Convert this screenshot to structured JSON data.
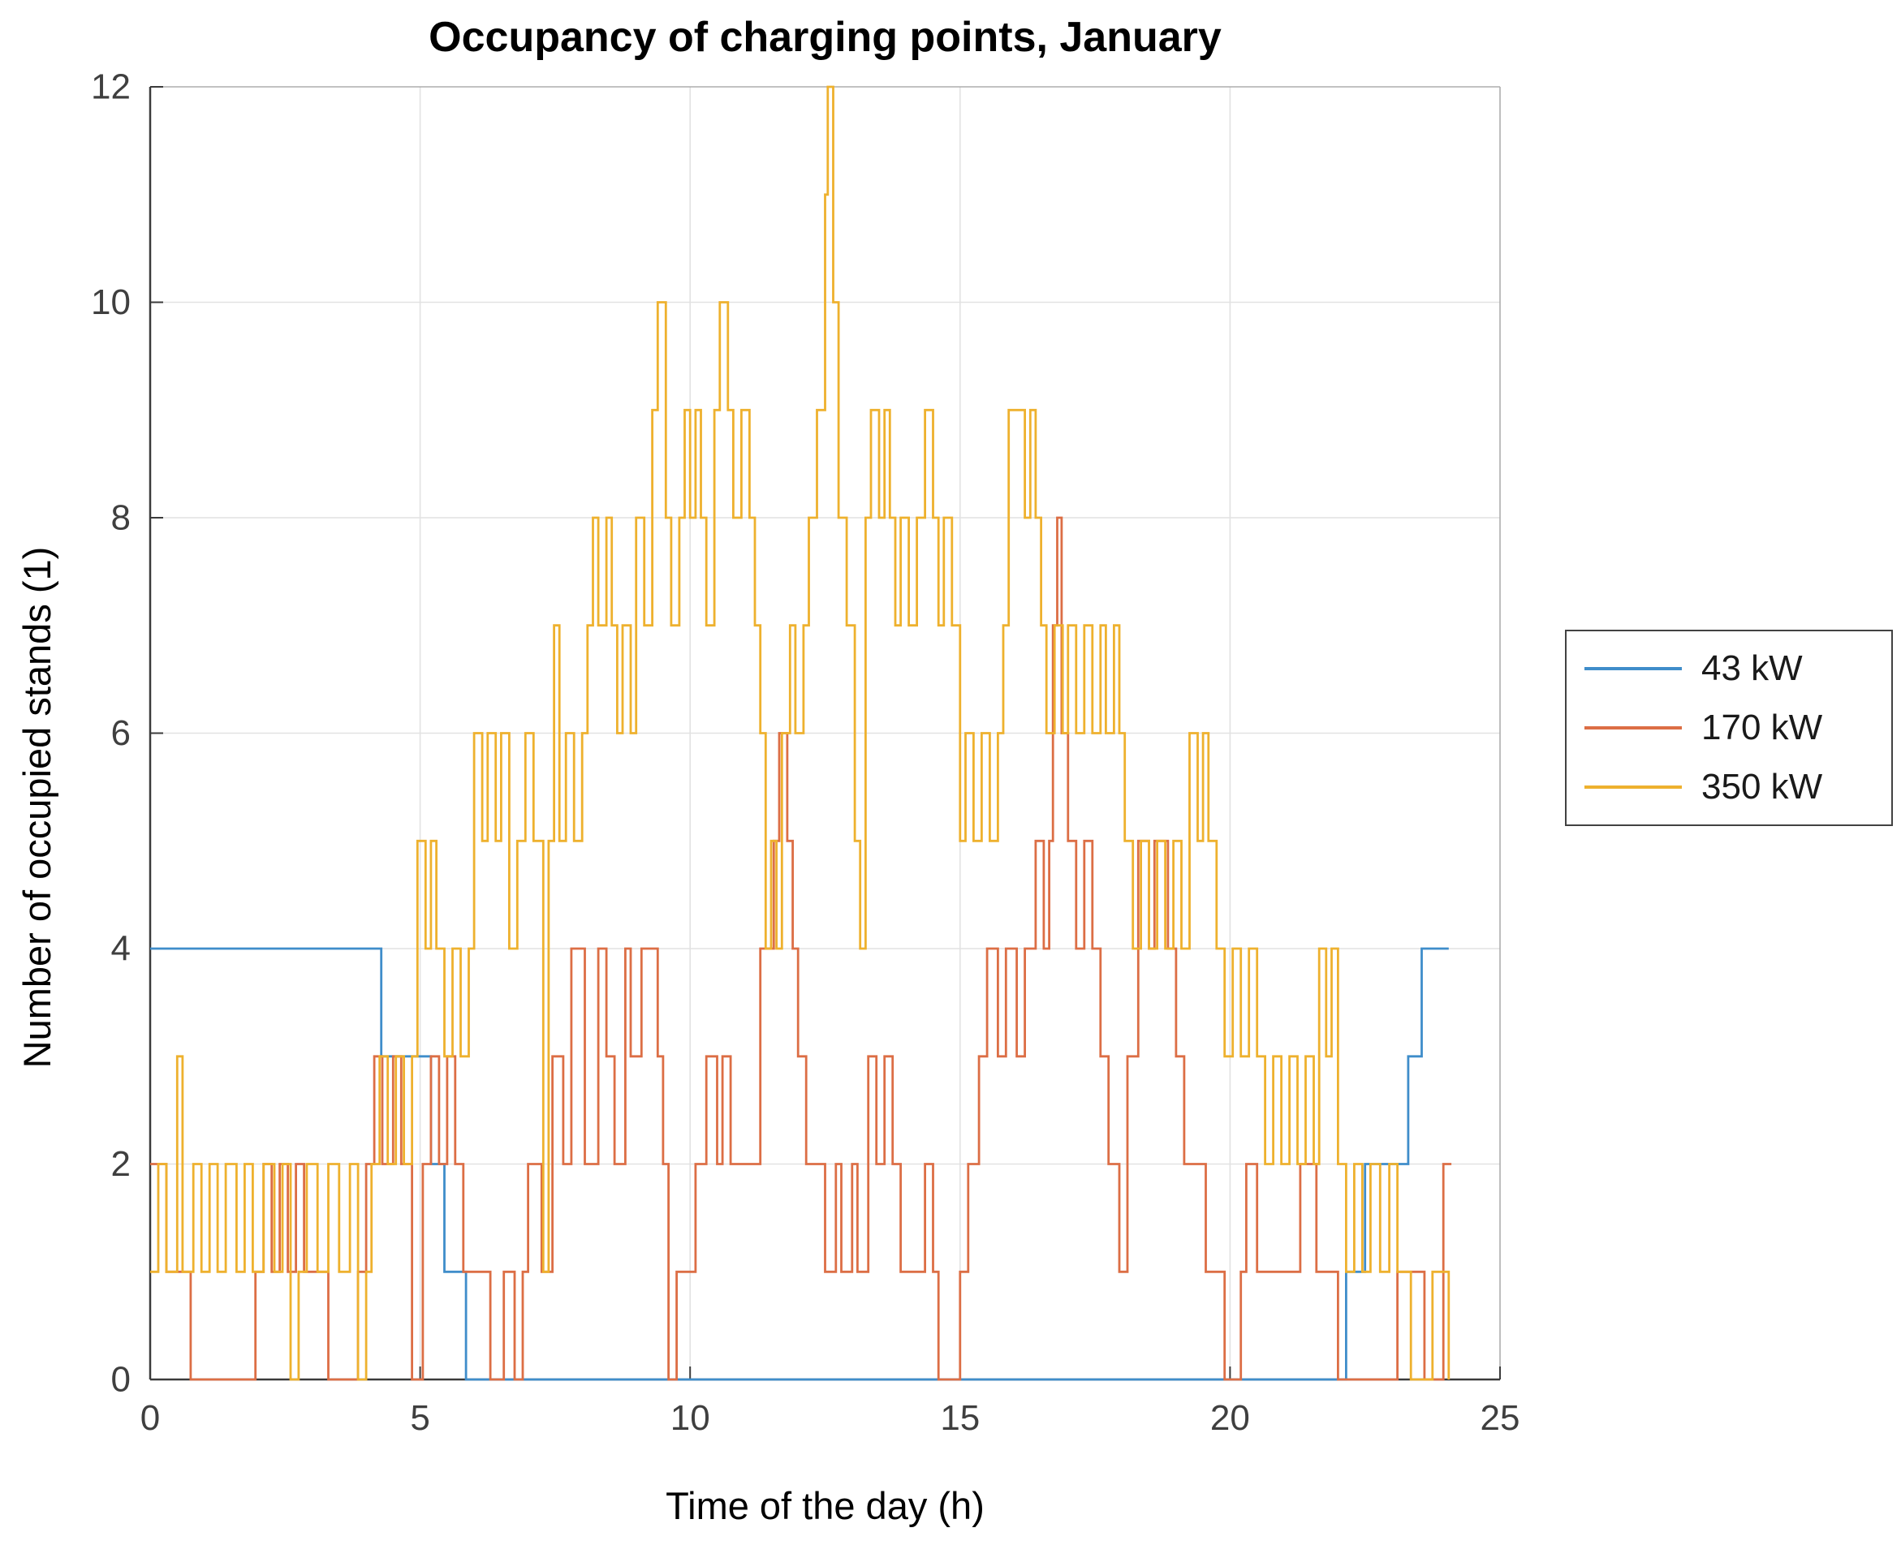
{
  "figure": {
    "title": "Occupancy of charging points, January"
  },
  "chart_data": {
    "type": "line",
    "subtype": "stairs",
    "title": "Occupancy of charging points, January",
    "xlabel": "Time of the day (h)",
    "ylabel": "Number of occupied stands (1)",
    "xlim": [
      0,
      25
    ],
    "ylim": [
      0,
      12
    ],
    "xticks": [
      0,
      5,
      10,
      15,
      20,
      25
    ],
    "yticks": [
      0,
      2,
      4,
      6,
      8,
      10,
      12
    ],
    "grid": true,
    "legend_position": "outside-right",
    "style": {
      "grid_color": "#e2e2e2",
      "axis_color": "#3b3b3b",
      "box_color": "#adadad",
      "tick_label_color": "#3f3f3f",
      "background": "#ffffff"
    },
    "series": [
      {
        "name": "43 kW",
        "color": "#3f8dca",
        "points": [
          [
            0,
            4
          ],
          [
            4.28,
            3
          ],
          [
            5.2,
            2
          ],
          [
            5.45,
            1
          ],
          [
            5.85,
            0
          ],
          [
            22.15,
            1
          ],
          [
            22.5,
            2
          ],
          [
            23.3,
            3
          ],
          [
            23.55,
            4
          ],
          [
            24.05,
            4
          ]
        ]
      },
      {
        "name": "170 kW",
        "color": "#dc6e45",
        "points": [
          [
            0,
            2
          ],
          [
            0.3,
            1
          ],
          [
            0.75,
            0
          ],
          [
            1.95,
            1
          ],
          [
            2.1,
            2
          ],
          [
            2.25,
            1
          ],
          [
            2.4,
            2
          ],
          [
            2.55,
            1
          ],
          [
            2.7,
            2
          ],
          [
            2.85,
            1
          ],
          [
            3.3,
            0
          ],
          [
            3.85,
            1
          ],
          [
            4.0,
            2
          ],
          [
            4.15,
            3
          ],
          [
            4.3,
            2
          ],
          [
            4.5,
            3
          ],
          [
            4.65,
            2
          ],
          [
            4.85,
            0
          ],
          [
            5.05,
            2
          ],
          [
            5.2,
            3
          ],
          [
            5.35,
            2
          ],
          [
            5.5,
            3
          ],
          [
            5.65,
            2
          ],
          [
            5.8,
            1
          ],
          [
            6.3,
            0
          ],
          [
            6.55,
            1
          ],
          [
            6.75,
            0
          ],
          [
            6.9,
            1
          ],
          [
            7.0,
            2
          ],
          [
            7.25,
            1
          ],
          [
            7.45,
            3
          ],
          [
            7.65,
            2
          ],
          [
            7.8,
            4
          ],
          [
            8.05,
            2
          ],
          [
            8.3,
            4
          ],
          [
            8.45,
            3
          ],
          [
            8.6,
            2
          ],
          [
            8.8,
            4
          ],
          [
            8.9,
            3
          ],
          [
            9.1,
            4
          ],
          [
            9.4,
            3
          ],
          [
            9.5,
            2
          ],
          [
            9.6,
            0
          ],
          [
            9.75,
            1
          ],
          [
            10.1,
            2
          ],
          [
            10.3,
            3
          ],
          [
            10.5,
            2
          ],
          [
            10.6,
            3
          ],
          [
            10.75,
            2
          ],
          [
            11.3,
            4
          ],
          [
            11.55,
            5
          ],
          [
            11.65,
            6
          ],
          [
            11.8,
            5
          ],
          [
            11.9,
            4
          ],
          [
            12.0,
            3
          ],
          [
            12.15,
            2
          ],
          [
            12.5,
            1
          ],
          [
            12.7,
            2
          ],
          [
            12.8,
            1
          ],
          [
            13.0,
            2
          ],
          [
            13.1,
            1
          ],
          [
            13.3,
            3
          ],
          [
            13.45,
            2
          ],
          [
            13.6,
            3
          ],
          [
            13.75,
            2
          ],
          [
            13.9,
            1
          ],
          [
            14.35,
            2
          ],
          [
            14.5,
            1
          ],
          [
            14.6,
            0
          ],
          [
            15.0,
            1
          ],
          [
            15.15,
            2
          ],
          [
            15.35,
            3
          ],
          [
            15.5,
            4
          ],
          [
            15.7,
            3
          ],
          [
            15.85,
            4
          ],
          [
            16.05,
            3
          ],
          [
            16.2,
            4
          ],
          [
            16.4,
            5
          ],
          [
            16.55,
            4
          ],
          [
            16.65,
            5
          ],
          [
            16.72,
            7
          ],
          [
            16.8,
            8
          ],
          [
            16.88,
            6
          ],
          [
            17.0,
            5
          ],
          [
            17.15,
            4
          ],
          [
            17.3,
            5
          ],
          [
            17.45,
            4
          ],
          [
            17.6,
            3
          ],
          [
            17.75,
            2
          ],
          [
            17.95,
            1
          ],
          [
            18.1,
            3
          ],
          [
            18.3,
            5
          ],
          [
            18.5,
            4
          ],
          [
            18.6,
            5
          ],
          [
            18.85,
            4
          ],
          [
            19.0,
            3
          ],
          [
            19.15,
            2
          ],
          [
            19.55,
            1
          ],
          [
            19.9,
            0
          ],
          [
            20.2,
            1
          ],
          [
            20.3,
            2
          ],
          [
            20.5,
            1
          ],
          [
            21.3,
            2
          ],
          [
            21.6,
            1
          ],
          [
            22.0,
            0
          ],
          [
            23.1,
            1
          ],
          [
            23.6,
            0
          ],
          [
            23.95,
            2
          ],
          [
            24.1,
            2
          ]
        ]
      },
      {
        "name": "350 kW",
        "color": "#eeb12e",
        "points": [
          [
            0,
            1
          ],
          [
            0.15,
            2
          ],
          [
            0.3,
            1
          ],
          [
            0.5,
            3
          ],
          [
            0.6,
            1
          ],
          [
            0.8,
            2
          ],
          [
            0.95,
            1
          ],
          [
            1.1,
            2
          ],
          [
            1.25,
            1
          ],
          [
            1.4,
            2
          ],
          [
            1.6,
            1
          ],
          [
            1.75,
            2
          ],
          [
            1.9,
            1
          ],
          [
            2.1,
            2
          ],
          [
            2.3,
            1
          ],
          [
            2.45,
            2
          ],
          [
            2.6,
            0
          ],
          [
            2.75,
            1
          ],
          [
            2.9,
            2
          ],
          [
            3.1,
            1
          ],
          [
            3.3,
            2
          ],
          [
            3.5,
            1
          ],
          [
            3.7,
            2
          ],
          [
            3.85,
            0
          ],
          [
            4.0,
            1
          ],
          [
            4.1,
            2
          ],
          [
            4.25,
            3
          ],
          [
            4.4,
            2
          ],
          [
            4.55,
            3
          ],
          [
            4.7,
            2
          ],
          [
            4.85,
            3
          ],
          [
            4.95,
            5
          ],
          [
            5.1,
            4
          ],
          [
            5.2,
            5
          ],
          [
            5.3,
            4
          ],
          [
            5.45,
            3
          ],
          [
            5.6,
            4
          ],
          [
            5.75,
            3
          ],
          [
            5.9,
            4
          ],
          [
            6.0,
            6
          ],
          [
            6.15,
            5
          ],
          [
            6.25,
            6
          ],
          [
            6.4,
            5
          ],
          [
            6.5,
            6
          ],
          [
            6.65,
            4
          ],
          [
            6.8,
            5
          ],
          [
            6.95,
            6
          ],
          [
            7.1,
            5
          ],
          [
            7.28,
            1
          ],
          [
            7.38,
            5
          ],
          [
            7.48,
            7
          ],
          [
            7.58,
            5
          ],
          [
            7.7,
            6
          ],
          [
            7.85,
            5
          ],
          [
            8.0,
            6
          ],
          [
            8.1,
            7
          ],
          [
            8.2,
            8
          ],
          [
            8.3,
            7
          ],
          [
            8.45,
            8
          ],
          [
            8.55,
            7
          ],
          [
            8.65,
            6
          ],
          [
            8.75,
            7
          ],
          [
            8.9,
            6
          ],
          [
            9.0,
            8
          ],
          [
            9.15,
            7
          ],
          [
            9.3,
            9
          ],
          [
            9.4,
            10
          ],
          [
            9.55,
            8
          ],
          [
            9.65,
            7
          ],
          [
            9.8,
            8
          ],
          [
            9.9,
            9
          ],
          [
            10.0,
            8
          ],
          [
            10.1,
            9
          ],
          [
            10.2,
            8
          ],
          [
            10.3,
            7
          ],
          [
            10.45,
            9
          ],
          [
            10.55,
            10
          ],
          [
            10.7,
            9
          ],
          [
            10.8,
            8
          ],
          [
            10.95,
            9
          ],
          [
            11.1,
            8
          ],
          [
            11.2,
            7
          ],
          [
            11.3,
            6
          ],
          [
            11.4,
            4
          ],
          [
            11.5,
            5
          ],
          [
            11.6,
            4
          ],
          [
            11.7,
            6
          ],
          [
            11.85,
            7
          ],
          [
            11.95,
            6
          ],
          [
            12.1,
            7
          ],
          [
            12.2,
            8
          ],
          [
            12.35,
            9
          ],
          [
            12.5,
            11
          ],
          [
            12.55,
            12
          ],
          [
            12.65,
            10
          ],
          [
            12.75,
            8
          ],
          [
            12.9,
            7
          ],
          [
            13.05,
            5
          ],
          [
            13.15,
            4
          ],
          [
            13.25,
            8
          ],
          [
            13.35,
            9
          ],
          [
            13.5,
            8
          ],
          [
            13.6,
            9
          ],
          [
            13.7,
            8
          ],
          [
            13.8,
            7
          ],
          [
            13.9,
            8
          ],
          [
            14.05,
            7
          ],
          [
            14.2,
            8
          ],
          [
            14.35,
            9
          ],
          [
            14.5,
            8
          ],
          [
            14.6,
            7
          ],
          [
            14.7,
            8
          ],
          [
            14.85,
            7
          ],
          [
            15.0,
            5
          ],
          [
            15.1,
            6
          ],
          [
            15.25,
            5
          ],
          [
            15.4,
            6
          ],
          [
            15.55,
            5
          ],
          [
            15.7,
            6
          ],
          [
            15.8,
            7
          ],
          [
            15.9,
            9
          ],
          [
            16.2,
            8
          ],
          [
            16.3,
            9
          ],
          [
            16.4,
            8
          ],
          [
            16.5,
            7
          ],
          [
            16.6,
            6
          ],
          [
            16.75,
            7
          ],
          [
            16.9,
            6
          ],
          [
            17.0,
            7
          ],
          [
            17.15,
            6
          ],
          [
            17.3,
            7
          ],
          [
            17.45,
            6
          ],
          [
            17.6,
            7
          ],
          [
            17.7,
            6
          ],
          [
            17.85,
            7
          ],
          [
            17.95,
            6
          ],
          [
            18.05,
            5
          ],
          [
            18.2,
            4
          ],
          [
            18.35,
            5
          ],
          [
            18.5,
            4
          ],
          [
            18.65,
            5
          ],
          [
            18.8,
            4
          ],
          [
            18.95,
            5
          ],
          [
            19.1,
            4
          ],
          [
            19.25,
            6
          ],
          [
            19.4,
            5
          ],
          [
            19.5,
            6
          ],
          [
            19.6,
            5
          ],
          [
            19.75,
            4
          ],
          [
            19.9,
            3
          ],
          [
            20.05,
            4
          ],
          [
            20.2,
            3
          ],
          [
            20.35,
            4
          ],
          [
            20.5,
            3
          ],
          [
            20.65,
            2
          ],
          [
            20.8,
            3
          ],
          [
            20.95,
            2
          ],
          [
            21.1,
            3
          ],
          [
            21.25,
            2
          ],
          [
            21.4,
            3
          ],
          [
            21.55,
            2
          ],
          [
            21.65,
            4
          ],
          [
            21.78,
            3
          ],
          [
            21.88,
            4
          ],
          [
            22.0,
            2
          ],
          [
            22.15,
            1
          ],
          [
            22.3,
            2
          ],
          [
            22.45,
            1
          ],
          [
            22.6,
            2
          ],
          [
            22.78,
            1
          ],
          [
            22.95,
            2
          ],
          [
            23.1,
            1
          ],
          [
            23.35,
            0
          ],
          [
            23.75,
            1
          ],
          [
            24.05,
            0
          ]
        ]
      }
    ]
  }
}
